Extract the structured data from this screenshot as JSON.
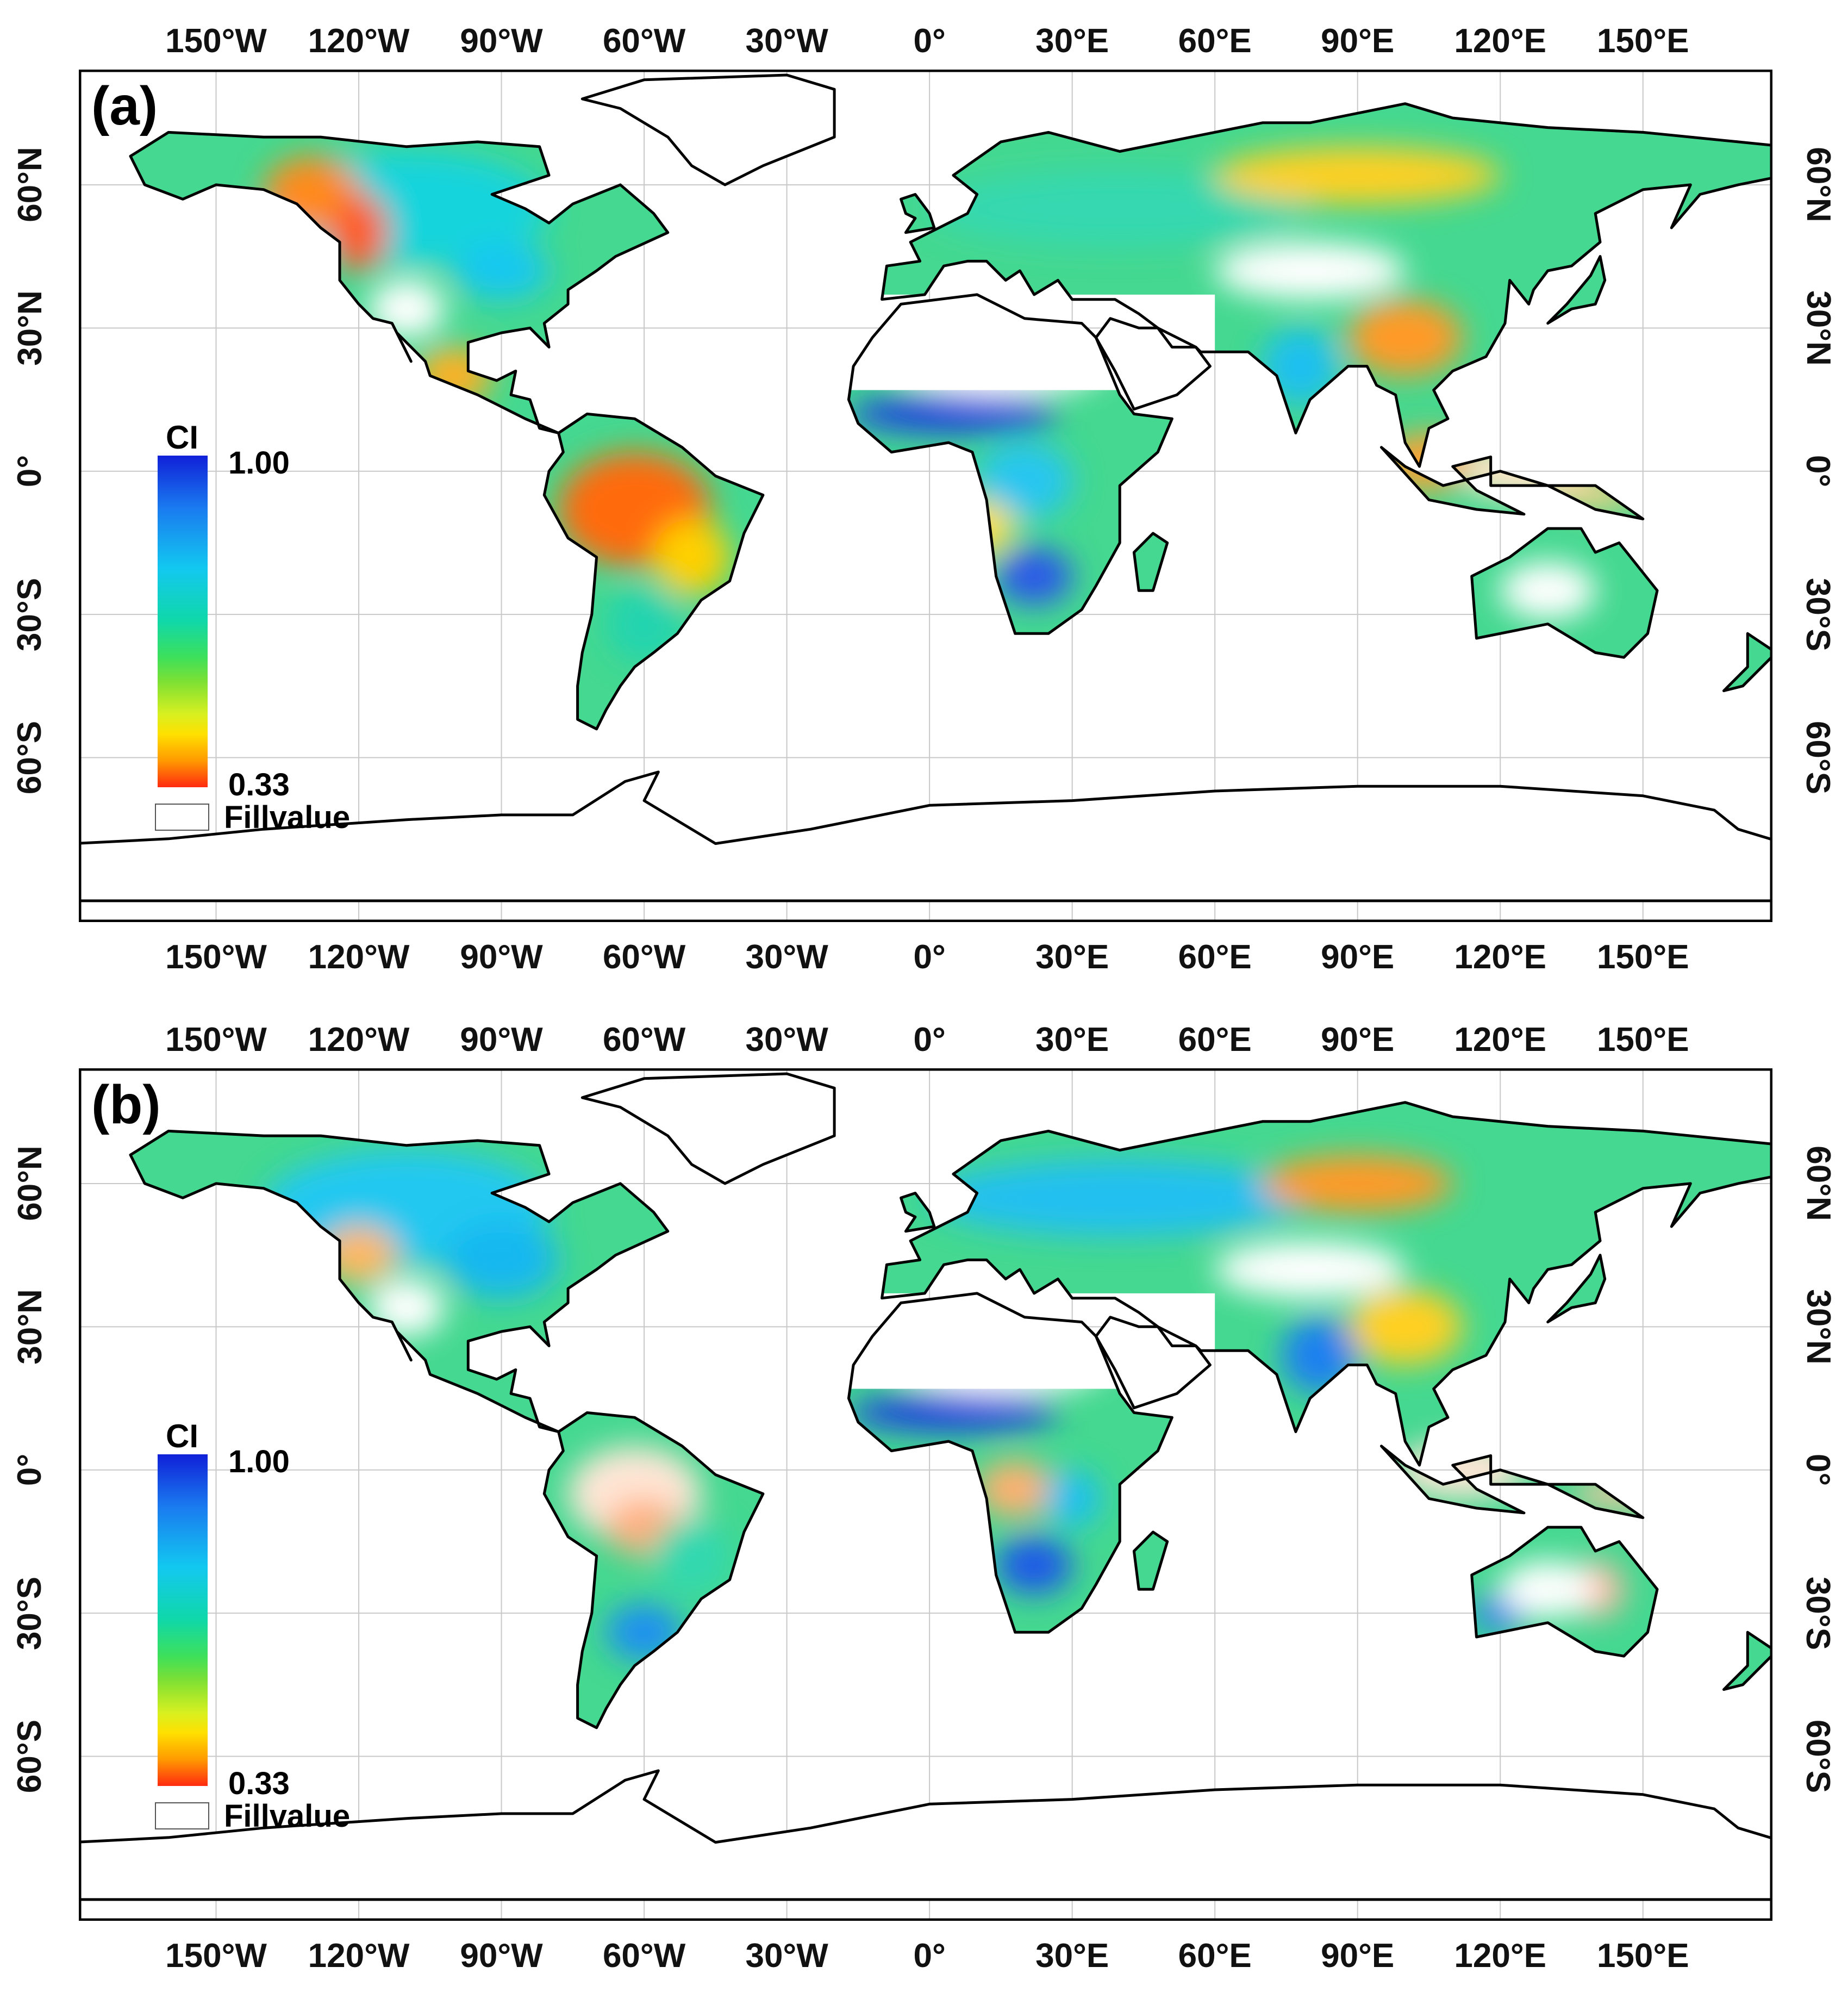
{
  "longitude_labels": [
    "150°W",
    "120°W",
    "90°W",
    "60°W",
    "30°W",
    "0°",
    "30°E",
    "60°E",
    "90°E",
    "120°E",
    "150°E"
  ],
  "latitude_labels": [
    "60°N",
    "30°N",
    "0°",
    "30°S",
    "60°S"
  ],
  "panels": [
    {
      "id": "a",
      "label": "(a)"
    },
    {
      "id": "b",
      "label": "(b)"
    }
  ],
  "legend": {
    "title": "CI",
    "max_label": "1.00",
    "min_label": "0.33",
    "fill_label": "Fillvalue",
    "colors": [
      "#1020d8",
      "#12c8f0",
      "#3ee05a",
      "#ffe000",
      "#ff2a10"
    ]
  }
}
